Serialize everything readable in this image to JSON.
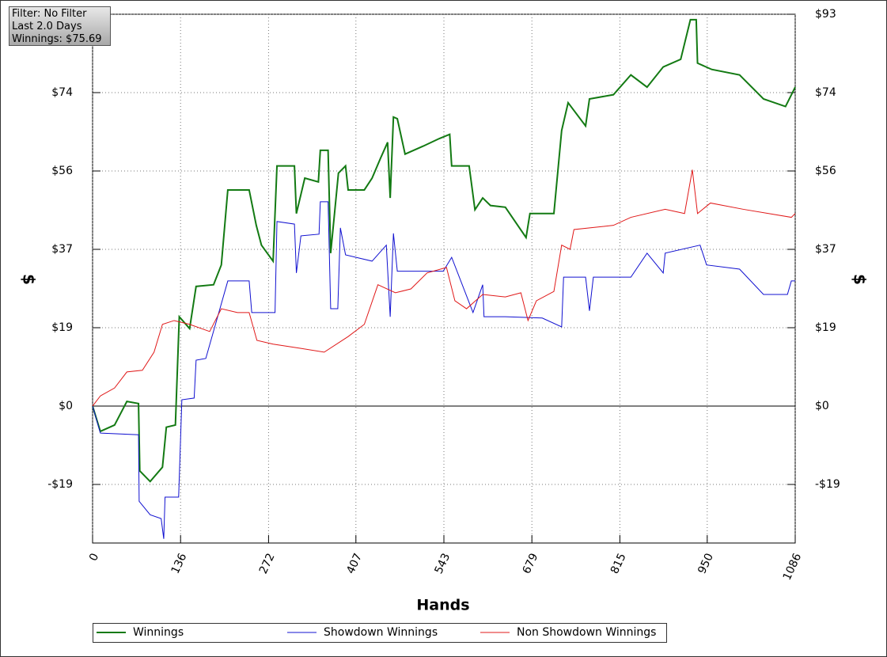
{
  "chart_data": {
    "type": "line",
    "info": [
      "Filter: No Filter",
      "Last 2.0 Days",
      "Winnings: $75.69"
    ],
    "x_label": "Hands",
    "y_label": "$",
    "xlim": [
      0,
      1086
    ],
    "xticks": [
      0,
      136,
      272,
      407,
      543,
      679,
      815,
      950,
      1086
    ],
    "ylim": [
      -32.5,
      93
    ],
    "yticks": [
      {
        "value": -18.6,
        "label": "-$19"
      },
      {
        "value": 0,
        "label": "$0"
      },
      {
        "value": 18.6,
        "label": "$19"
      },
      {
        "value": 37.2,
        "label": "$37"
      },
      {
        "value": 55.8,
        "label": "$56"
      },
      {
        "value": 74.4,
        "label": "$74"
      },
      {
        "value": 93,
        "label": "$93"
      }
    ],
    "grid": true,
    "series": [
      {
        "name": "Winnings",
        "color": "#137a13",
        "x": [
          0,
          12,
          34,
          53,
          71,
          73,
          89,
          108,
          114,
          128,
          134,
          150,
          160,
          187,
          199,
          209,
          242,
          253,
          261,
          279,
          285,
          312,
          315,
          328,
          349,
          352,
          364,
          368,
          380,
          391,
          395,
          420,
          432,
          445,
          456,
          460,
          465,
          471,
          483,
          511,
          536,
          552,
          555,
          582,
          591,
          603,
          615,
          638,
          670,
          676,
          713,
          725,
          735,
          762,
          768,
          805,
          832,
          857,
          882,
          909,
          924,
          933,
          935,
          957,
          1000,
          1037,
          1071,
          1086
        ],
        "values": [
          0,
          -6,
          -4.5,
          1.1,
          0.6,
          -15.4,
          -17.9,
          -14.5,
          -5,
          -4.5,
          21.2,
          18.4,
          28.4,
          28.8,
          33.5,
          51.3,
          51.3,
          42.9,
          38.2,
          34.4,
          57,
          57,
          45.7,
          54.1,
          53.2,
          60.7,
          60.7,
          36.3,
          55.3,
          57,
          51.3,
          51.3,
          54.1,
          58.8,
          62.6,
          49.4,
          68.6,
          68.2,
          59.8,
          61.7,
          63.5,
          64.5,
          57,
          57,
          46.6,
          49.4,
          47.6,
          47.2,
          40,
          45.7,
          45.7,
          65.4,
          72,
          66.5,
          72.9,
          73.9,
          78.6,
          75.7,
          80.5,
          82.3,
          91.7,
          91.7,
          81.4,
          79.9,
          78.6,
          72.9,
          71.1,
          75.7
        ]
      },
      {
        "name": "Showdown Winnings",
        "color": "#1010d0",
        "x": [
          0,
          12,
          71,
          72,
          89,
          106,
          110,
          112,
          133,
          138,
          157,
          160,
          175,
          209,
          242,
          246,
          282,
          285,
          312,
          315,
          322,
          350,
          352,
          364,
          368,
          379,
          383,
          391,
          432,
          454,
          460,
          465,
          471,
          542,
          555,
          588,
          603,
          605,
          638,
          695,
          725,
          728,
          762,
          768,
          774,
          832,
          857,
          882,
          885,
          939,
          949,
          1000,
          1037,
          1074,
          1080,
          1086
        ],
        "values": [
          0,
          -6.4,
          -6.8,
          -22.6,
          -25.8,
          -26.7,
          -31.5,
          -21.6,
          -21.6,
          1.5,
          1.9,
          10.9,
          11.3,
          29.7,
          29.7,
          22.2,
          22.2,
          43.8,
          43.2,
          31.6,
          40.4,
          40.8,
          48.5,
          48.5,
          23.1,
          23.1,
          42.3,
          35.9,
          34.4,
          38.2,
          21.2,
          41,
          32,
          32,
          35.3,
          22.2,
          28.8,
          21.2,
          21.2,
          20.9,
          18.8,
          30.6,
          30.6,
          22.6,
          30.6,
          30.6,
          36.3,
          31.6,
          36.3,
          38.2,
          33.5,
          32.5,
          26.5,
          26.5,
          29.7,
          29.7
        ]
      },
      {
        "name": "Non Showdown Winnings",
        "color": "#e01818",
        "x": [
          0,
          12,
          34,
          53,
          77,
          95,
          108,
          126,
          150,
          181,
          199,
          224,
          242,
          254,
          279,
          322,
          358,
          395,
          420,
          441,
          468,
          492,
          517,
          547,
          560,
          578,
          603,
          638,
          662,
          673,
          686,
          713,
          725,
          738,
          744,
          805,
          832,
          885,
          915,
          927,
          935,
          955,
          1006,
          1080,
          1086
        ],
        "values": [
          0,
          2.4,
          4.3,
          8.1,
          8.5,
          12.8,
          19.4,
          20.3,
          19.4,
          17.7,
          23.1,
          22.2,
          22.2,
          15.6,
          14.7,
          13.7,
          12.8,
          16.5,
          19.4,
          28.8,
          26.9,
          27.8,
          31.6,
          32.9,
          25,
          23.1,
          26.5,
          25.9,
          26.9,
          20.3,
          25,
          27.2,
          38.2,
          37.2,
          41.9,
          42.9,
          44.8,
          46.7,
          45.7,
          56.1,
          45.7,
          48.2,
          46.7,
          44.8,
          45.7
        ]
      }
    ]
  }
}
